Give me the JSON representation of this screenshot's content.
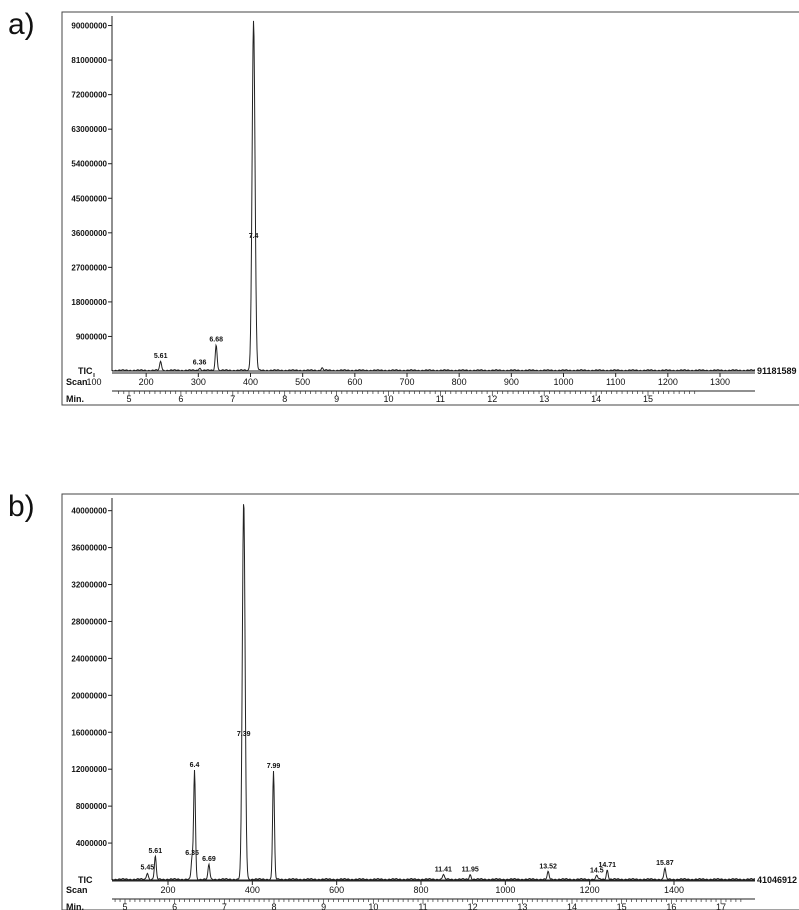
{
  "chart_data": [
    {
      "type": "line",
      "panel_label": "a)",
      "row_labels": [
        "TIC",
        "Scan",
        "Min."
      ],
      "y_ticks": [
        "9000000",
        "18000000",
        "27000000",
        "36000000",
        "45000000",
        "54000000",
        "63000000",
        "72000000",
        "81000000",
        "90000000"
      ],
      "y_tick_values": [
        9000000,
        18000000,
        27000000,
        36000000,
        45000000,
        54000000,
        63000000,
        72000000,
        81000000,
        90000000
      ],
      "ylim": [
        0,
        91181589
      ],
      "scan_ticks": [
        "100",
        "200",
        "300",
        "400",
        "500",
        "600",
        "700",
        "800",
        "900",
        "1000",
        "1100",
        "1200",
        "1300"
      ],
      "min_ticks": [
        "5",
        "6",
        "7",
        "8",
        "9",
        "10",
        "11",
        "12",
        "13",
        "14",
        "15"
      ],
      "xlim_min": [
        4.75,
        15.95
      ],
      "max_label": "91181589",
      "peaks": [
        {
          "rt": 5.61,
          "label": "5.61",
          "height": 2300000
        },
        {
          "rt": 6.36,
          "label": "6.36",
          "height": 600000
        },
        {
          "rt": 6.68,
          "label": "6.68",
          "height": 6700000
        },
        {
          "rt": 7.4,
          "label": "7.4",
          "height": 91181589
        },
        {
          "rt": 8.72,
          "label": "",
          "height": 600000
        }
      ]
    },
    {
      "type": "line",
      "panel_label": "b)",
      "row_labels": [
        "TIC",
        "Scan",
        "Min."
      ],
      "y_ticks": [
        "4000000",
        "8000000",
        "12000000",
        "16000000",
        "20000000",
        "24000000",
        "28000000",
        "32000000",
        "36000000",
        "40000000"
      ],
      "y_tick_values": [
        4000000,
        8000000,
        12000000,
        16000000,
        20000000,
        24000000,
        28000000,
        32000000,
        36000000,
        40000000
      ],
      "ylim": [
        0,
        41046912
      ],
      "scan_ticks": [
        "200",
        "400",
        "600",
        "800",
        "1000",
        "1200",
        "1400"
      ],
      "min_ticks": [
        "5",
        "6",
        "7",
        "8",
        "9",
        "10",
        "11",
        "12",
        "13",
        "14",
        "15",
        "16",
        "17"
      ],
      "xlim_min": [
        4.45,
        17.45
      ],
      "max_label": "41046912",
      "peaks": [
        {
          "rt": 5.45,
          "label": "5.45",
          "height": 700000
        },
        {
          "rt": 5.61,
          "label": "5.61",
          "height": 2500000
        },
        {
          "rt": 6.35,
          "label": "6.35",
          "height": 2300000
        },
        {
          "rt": 6.4,
          "label": "6.4",
          "height": 11800000
        },
        {
          "rt": 6.69,
          "label": "6.69",
          "height": 1600000
        },
        {
          "rt": 7.39,
          "label": "7.39",
          "height": 41046912
        },
        {
          "rt": 7.99,
          "label": "7.99",
          "height": 11700000
        },
        {
          "rt": 11.41,
          "label": "11.41",
          "height": 500000
        },
        {
          "rt": 11.95,
          "label": "11.95",
          "height": 500000
        },
        {
          "rt": 13.52,
          "label": "13.52",
          "height": 800000
        },
        {
          "rt": 14.5,
          "label": "14.5",
          "height": 400000
        },
        {
          "rt": 14.71,
          "label": "14.71",
          "height": 1000000
        },
        {
          "rt": 15.87,
          "label": "15.87",
          "height": 1200000
        }
      ]
    }
  ]
}
